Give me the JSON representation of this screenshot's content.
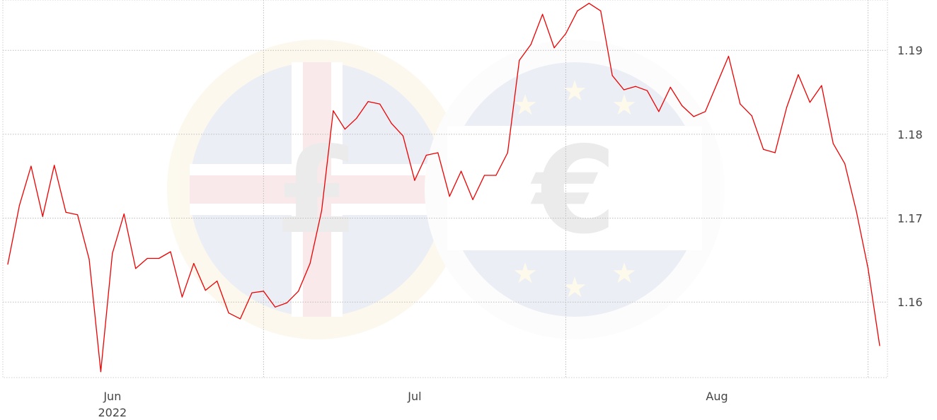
{
  "chart_data": {
    "type": "line",
    "title": "",
    "xlabel": "",
    "ylabel": "",
    "grid": true,
    "legend": "none",
    "ylim": [
      1.151,
      1.196
    ],
    "y_ticks": [
      1.16,
      1.17,
      1.18,
      1.19
    ],
    "y_tick_labels": [
      "1.16",
      "1.17",
      "1.18",
      "1.19"
    ],
    "x_ticks": [
      {
        "index": 9,
        "label": "Jun",
        "sublabel": "2022"
      },
      {
        "index": 35,
        "label": "Jul",
        "sublabel": ""
      },
      {
        "index": 61,
        "label": "Aug",
        "sublabel": ""
      }
    ],
    "x_gridlines_at_index": [
      22,
      48,
      74
    ],
    "series": [
      {
        "color": "#ee0000",
        "values": [
          1.1645,
          1.1715,
          1.1762,
          1.1702,
          1.1763,
          1.1707,
          1.1704,
          1.1651,
          1.1517,
          1.1658,
          1.1705,
          1.164,
          1.1652,
          1.1652,
          1.166,
          1.1606,
          1.1646,
          1.1614,
          1.1625,
          1.1587,
          1.158,
          1.1611,
          1.1613,
          1.1594,
          1.1599,
          1.1613,
          1.1646,
          1.1709,
          1.1828,
          1.1806,
          1.1819,
          1.1839,
          1.1836,
          1.1813,
          1.1798,
          1.1745,
          1.1775,
          1.1778,
          1.1726,
          1.1756,
          1.1722,
          1.1751,
          1.1751,
          1.1778,
          1.1888,
          1.1907,
          1.1943,
          1.1903,
          1.192,
          1.1947,
          1.1956,
          1.1947,
          1.187,
          1.1853,
          1.1857,
          1.1852,
          1.1827,
          1.1856,
          1.1834,
          1.1821,
          1.1827,
          1.186,
          1.1893,
          1.1836,
          1.1822,
          1.1782,
          1.1778,
          1.1832,
          1.1871,
          1.1838,
          1.1858,
          1.1789,
          1.1765,
          1.1708,
          1.164,
          1.1548
        ]
      }
    ]
  }
}
